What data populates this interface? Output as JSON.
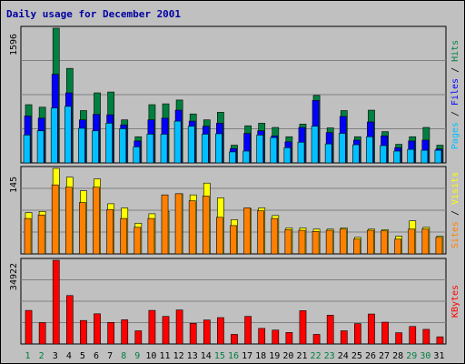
{
  "title": "Daily usage for December 2001",
  "colors": {
    "hits": "#008040",
    "files": "#0000ff",
    "pages": "#00c0ff",
    "visits": "#ffff00",
    "sites": "#ff8000",
    "kbytes": "#ff0000",
    "weekday": "#008040",
    "weekend": "#0000a0",
    "title": "#0000a0"
  },
  "chart_data": [
    {
      "type": "bar",
      "categories": [
        "1",
        "2",
        "3",
        "4",
        "5",
        "6",
        "7",
        "8",
        "9",
        "10",
        "11",
        "12",
        "13",
        "14",
        "15",
        "16",
        "17",
        "18",
        "19",
        "20",
        "21",
        "22",
        "23",
        "24",
        "25",
        "26",
        "27",
        "28",
        "29",
        "30",
        "31"
      ],
      "ymax_label": "1596",
      "ylim": [
        0,
        1596
      ],
      "legend": [
        "Pages",
        "Files",
        "Hits"
      ],
      "series": [
        {
          "name": "Hits",
          "values": [
            690,
            660,
            1596,
            1120,
            620,
            830,
            840,
            510,
            310,
            690,
            700,
            745,
            580,
            510,
            600,
            210,
            440,
            470,
            420,
            310,
            460,
            800,
            415,
            620,
            310,
            625,
            370,
            220,
            310,
            420,
            210
          ]
        },
        {
          "name": "Files",
          "values": [
            555,
            530,
            1050,
            830,
            510,
            575,
            570,
            450,
            260,
            510,
            530,
            625,
            495,
            435,
            470,
            170,
            350,
            380,
            320,
            250,
            420,
            740,
            360,
            550,
            270,
            485,
            320,
            180,
            260,
            270,
            165
          ]
        },
        {
          "name": "Pages",
          "values": [
            330,
            380,
            650,
            670,
            410,
            380,
            470,
            405,
            190,
            340,
            340,
            495,
            435,
            340,
            345,
            130,
            140,
            330,
            300,
            180,
            245,
            435,
            225,
            350,
            215,
            310,
            205,
            140,
            160,
            150,
            150
          ]
        }
      ]
    },
    {
      "type": "bar",
      "categories": [
        "1",
        "2",
        "3",
        "4",
        "5",
        "6",
        "7",
        "8",
        "9",
        "10",
        "11",
        "12",
        "13",
        "14",
        "15",
        "16",
        "17",
        "18",
        "19",
        "20",
        "21",
        "22",
        "23",
        "24",
        "25",
        "26",
        "27",
        "28",
        "29",
        "30",
        "31"
      ],
      "ymax_label": "145",
      "ylim": [
        0,
        145
      ],
      "legend": [
        "Sites",
        "Visits"
      ],
      "series": [
        {
          "name": "Visits",
          "values": [
            70,
            72,
            145,
            130,
            107,
            127,
            85,
            78,
            52,
            68,
            72,
            102,
            100,
            120,
            95,
            58,
            77,
            78,
            65,
            44,
            44,
            42,
            42,
            44,
            28,
            42,
            41,
            30,
            56,
            45,
            30
          ]
        },
        {
          "name": "Sites",
          "values": [
            60,
            66,
            117,
            113,
            87,
            113,
            75,
            60,
            45,
            60,
            100,
            102,
            90,
            98,
            62,
            48,
            78,
            73,
            60,
            41,
            40,
            38,
            40,
            42,
            25,
            40,
            39,
            25,
            42,
            42,
            28
          ]
        }
      ]
    },
    {
      "type": "bar",
      "categories": [
        "1",
        "2",
        "3",
        "4",
        "5",
        "6",
        "7",
        "8",
        "9",
        "10",
        "11",
        "12",
        "13",
        "14",
        "15",
        "16",
        "17",
        "18",
        "19",
        "20",
        "21",
        "22",
        "23",
        "24",
        "25",
        "26",
        "27",
        "28",
        "29",
        "30",
        "31"
      ],
      "ymax_label": "34922",
      "ylim": [
        0,
        34922
      ],
      "legend": [
        "KBytes"
      ],
      "series": [
        {
          "name": "KBytes",
          "values": [
            14000,
            8900,
            34922,
            20200,
            9800,
            12600,
            9000,
            10100,
            5500,
            14000,
            11500,
            14200,
            8600,
            10000,
            11000,
            4000,
            11500,
            6500,
            5800,
            4800,
            13900,
            4000,
            12000,
            5500,
            8500,
            12500,
            9100,
            4700,
            7300,
            6100,
            3000
          ]
        }
      ]
    }
  ]
}
